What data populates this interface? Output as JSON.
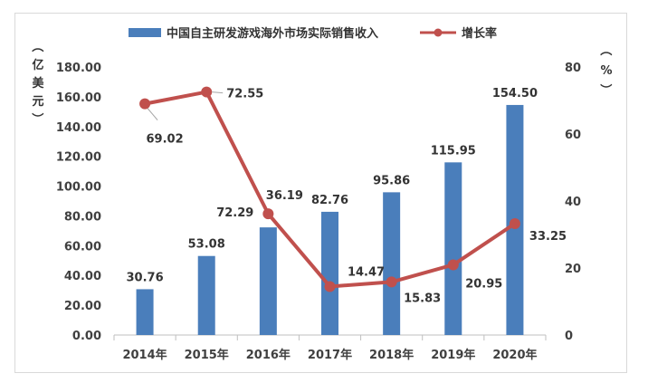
{
  "chart_data": {
    "type": "bar",
    "categories": [
      "2014年",
      "2015年",
      "2016年",
      "2017年",
      "2018年",
      "2019年",
      "2020年"
    ],
    "series": [
      {
        "name": "中国自主研发游戏海外市场实际销售收入",
        "type": "bar",
        "axis": "left",
        "values": [
          30.76,
          53.08,
          72.29,
          82.76,
          95.86,
          115.95,
          154.5
        ],
        "labels": [
          "30.76",
          "53.08",
          "72.29",
          "82.76",
          "95.86",
          "115.95",
          "154.50"
        ],
        "color": "#4a7ebb"
      },
      {
        "name": "增长率",
        "type": "line",
        "axis": "right",
        "values": [
          69.02,
          72.55,
          36.19,
          14.47,
          15.83,
          20.95,
          33.25
        ],
        "labels": [
          "69.02",
          "72.55",
          "36.19",
          "14.47",
          "15.83",
          "20.95",
          "33.25"
        ],
        "color": "#c0504d"
      }
    ],
    "ylabel_left": "（亿美元）",
    "ylabel_right": "（%）",
    "ylim_left": [
      0,
      180
    ],
    "ylim_right": [
      0,
      80
    ],
    "yticks_left": [
      "0.00",
      "20.00",
      "40.00",
      "60.00",
      "80.00",
      "100.00",
      "120.00",
      "140.00",
      "160.00",
      "180.00"
    ],
    "yticks_right": [
      "0",
      "20",
      "40",
      "60",
      "80"
    ],
    "legend_position": "top",
    "grid": false
  }
}
